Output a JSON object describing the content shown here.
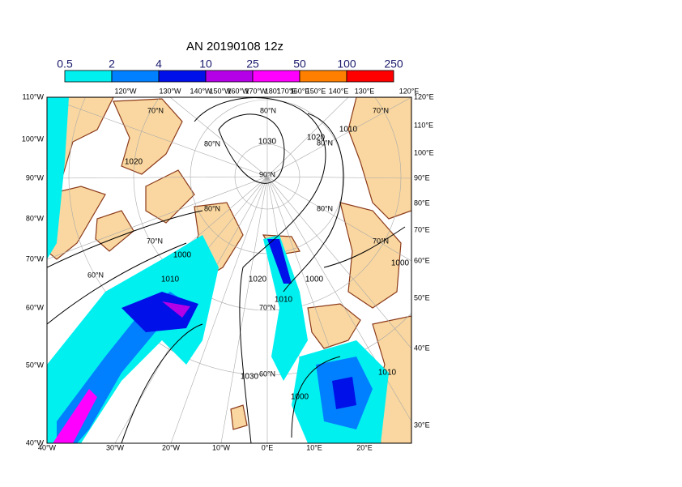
{
  "header": {
    "title": "AN  20190108 12z"
  },
  "colorbar": {
    "levels": [
      0.5,
      2,
      4,
      10,
      25,
      50,
      100,
      250
    ],
    "colors": [
      "#00f0f0",
      "#0080ff",
      "#0010e8",
      "#b400e6",
      "#ff00ff",
      "#ff8000",
      "#ff0000"
    ]
  },
  "map": {
    "left_labels": [
      "110°W",
      "100°W",
      "90°W",
      "80°W",
      "70°W",
      "60°W",
      "50°W",
      "40°W"
    ],
    "bottom_labels": [
      "40°W",
      "30°W",
      "20°W",
      "10°W",
      "0°E",
      "10°E",
      "20°E"
    ],
    "right_labels": [
      "120°E",
      "110°E",
      "100°E",
      "90°E",
      "80°E",
      "70°E",
      "60°E",
      "50°E",
      "40°E",
      "30°E"
    ],
    "top_labels": [
      "120°W",
      "130°W",
      "140°W",
      "150°W",
      "160°W",
      "170°W",
      "180°",
      "170°E",
      "160°E",
      "150°E",
      "140°E",
      "130°E",
      "120°E"
    ],
    "lat_labels": [
      "80°N",
      "80°N",
      "80°N",
      "80°N",
      "90°N",
      "70°N",
      "70°N",
      "70°N",
      "70°N",
      "70°N",
      "60°N",
      "60°N",
      "80°N"
    ],
    "isobar_labels": [
      "1030",
      "1020",
      "1020",
      "1010",
      "1000",
      "1000",
      "1010",
      "1000",
      "1020",
      "1010",
      "1030",
      "1000",
      "1010"
    ]
  }
}
